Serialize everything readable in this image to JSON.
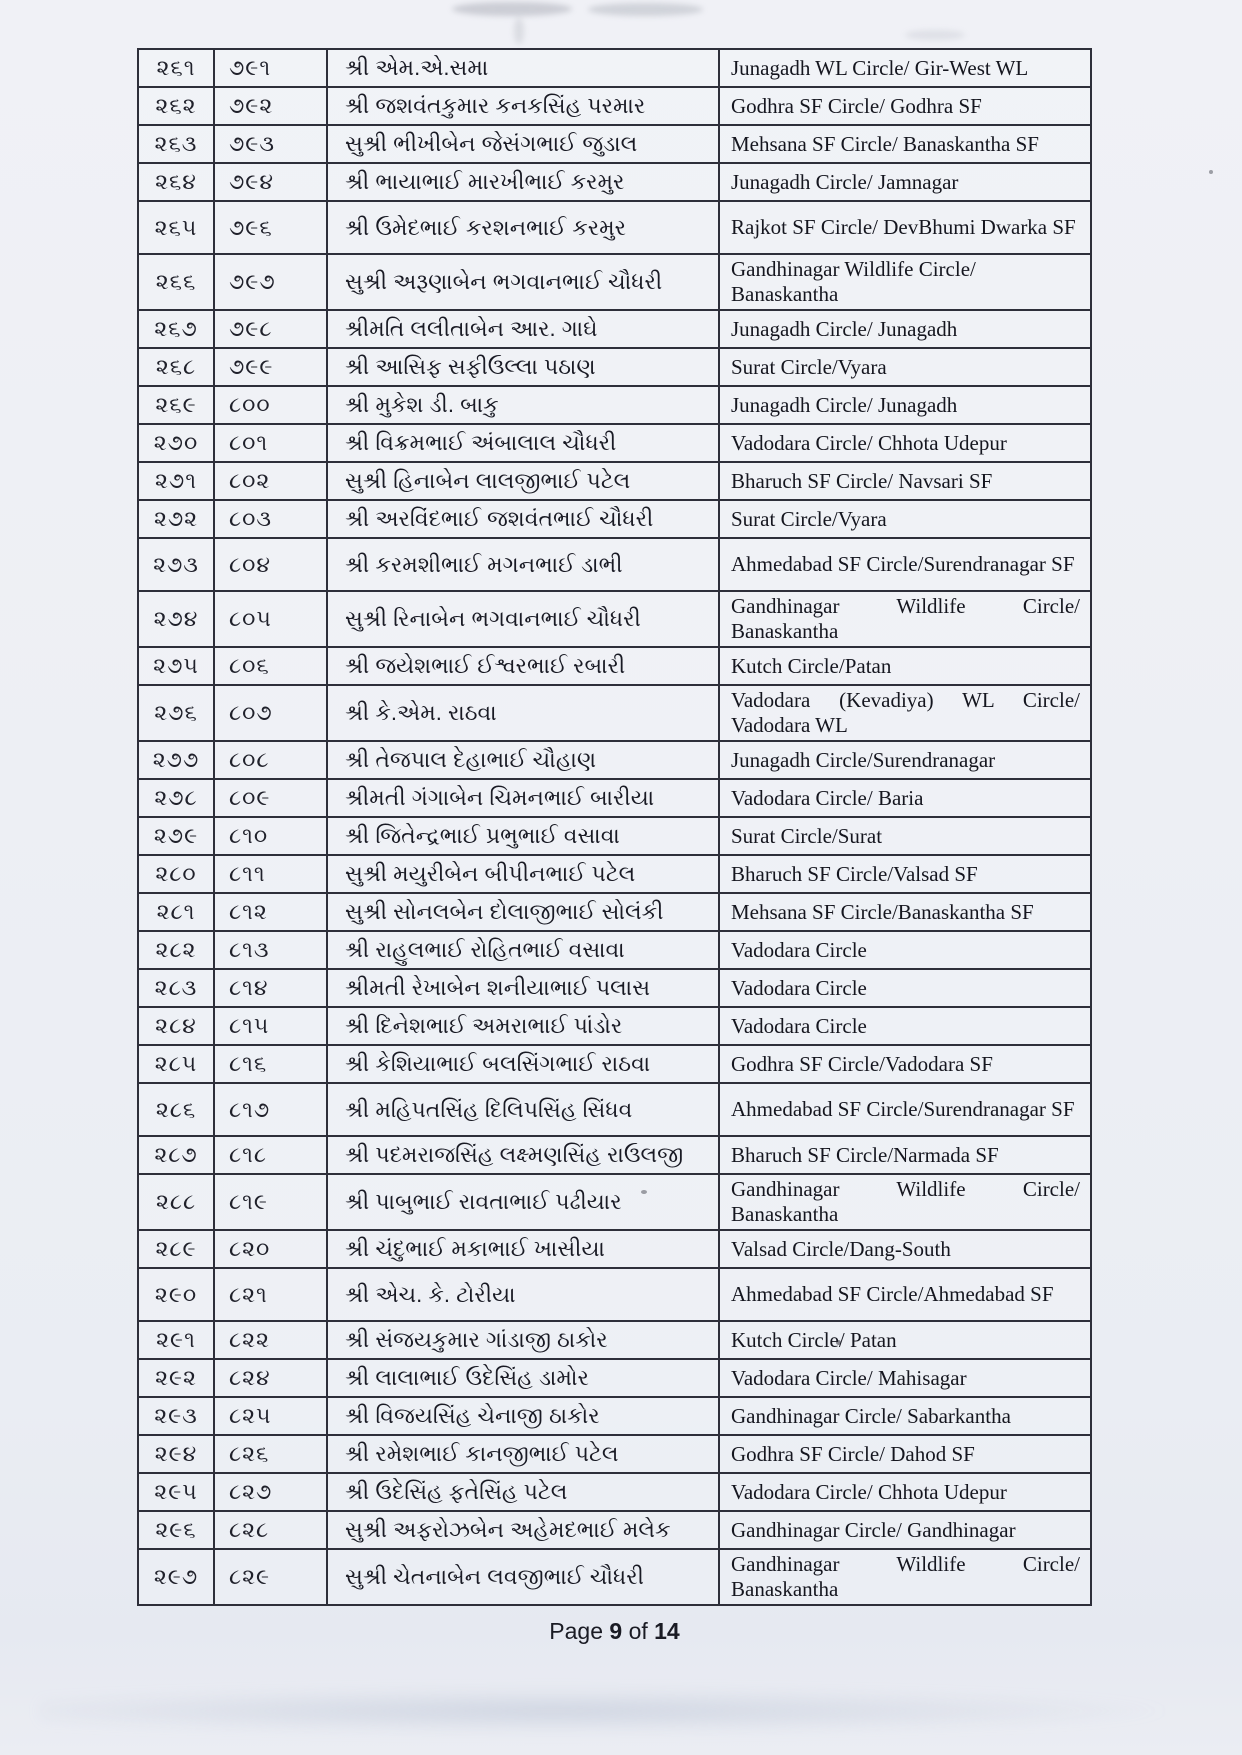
{
  "footer": {
    "word_page": "Page",
    "page_number": "9",
    "word_of": "of",
    "total_pages": "14"
  },
  "table": {
    "rows": [
      {
        "sr": "૨૬૧",
        "no": "૭૯૧",
        "name": "શ્રી એમ.એ.સમા",
        "circle": "Junagadh WL Circle/ Gir-West WL",
        "tall": false,
        "justify": false
      },
      {
        "sr": "૨૬૨",
        "no": "૭૯૨",
        "name": "શ્રી જશવંતકુમાર કનકસિંહ પરમાર",
        "circle": "Godhra SF Circle/ Godhra SF",
        "tall": false,
        "justify": false
      },
      {
        "sr": "૨૬૩",
        "no": "૭૯૩",
        "name": "સુશ્રી ભીખીબેન જેસંગભાઈ જુડાલ",
        "circle": "Mehsana SF Circle/ Banaskantha SF",
        "tall": false,
        "justify": false
      },
      {
        "sr": "૨૬૪",
        "no": "૭૯૪",
        "name": "શ્રી ભાયાભાઈ મારખીભાઈ કરમુર",
        "circle": "Junagadh Circle/ Jamnagar",
        "tall": false,
        "justify": false
      },
      {
        "sr": "૨૬૫",
        "no": "૭૯૬",
        "name": "શ્રી ઉમેદભાઈ કરશનભાઈ કરમુર",
        "circle": "Rajkot SF Circle/ DevBhumi Dwarka SF",
        "tall": true,
        "justify": false
      },
      {
        "sr": "૨૬૬",
        "no": "૭૯૭",
        "name": "સુશ્રી અરૂણાબેન ભગવાનભાઈ ચૌધરી",
        "circle": "Gandhinagar Wildlife Circle/ Banaskantha",
        "tall": true,
        "justify": false
      },
      {
        "sr": "૨૬૭",
        "no": "૭૯૮",
        "name": "શ્રીમતિ લલીતાબેન આર. ગાઘે",
        "circle": "Junagadh Circle/ Junagadh",
        "tall": false,
        "justify": false
      },
      {
        "sr": "૨૬૮",
        "no": "૭૯૯",
        "name": "શ્રી આસિફ સફીઉલ્લા પઠાણ",
        "circle": "Surat Circle/Vyara",
        "tall": false,
        "justify": false
      },
      {
        "sr": "૨૬૯",
        "no": "૮૦૦",
        "name": "શ્રી મુકેશ ડી. બાકુ",
        "circle": "Junagadh Circle/ Junagadh",
        "tall": false,
        "justify": false
      },
      {
        "sr": "૨૭૦",
        "no": "૮૦૧",
        "name": "શ્રી વિક્રમભાઈ અંબાલાલ ચૌધરી",
        "circle": "Vadodara Circle/ Chhota Udepur",
        "tall": false,
        "justify": false
      },
      {
        "sr": "૨૭૧",
        "no": "૮૦૨",
        "name": "સુશ્રી હિનાબેન લાલજીભાઈ પટેલ",
        "circle": "Bharuch SF Circle/ Navsari SF",
        "tall": false,
        "justify": false
      },
      {
        "sr": "૨૭૨",
        "no": "૮૦૩",
        "name": "શ્રી અરવિંદભાઈ જશવંતભાઈ ચૌધરી",
        "circle": "Surat Circle/Vyara",
        "tall": false,
        "justify": false
      },
      {
        "sr": "૨૭૩",
        "no": "૮૦૪",
        "name": "શ્રી કરમશીભાઈ મગનભાઈ ડાભી",
        "circle": "Ahmedabad SF Circle/Surendranagar SF",
        "tall": true,
        "justify": false
      },
      {
        "sr": "૨૭૪",
        "no": "૮૦૫",
        "name": "સુશ્રી રિનાબેન ભગવાનભાઈ ચૌધરી",
        "circle": "Gandhinagar Wildlife Circle/ Banaskantha",
        "tall": true,
        "justify": true
      },
      {
        "sr": "૨૭૫",
        "no": "૮૦૬",
        "name": "શ્રી જયેશભાઈ ઈશ્વરભાઈ રબારી",
        "circle": "Kutch Circle/Patan",
        "tall": false,
        "justify": false
      },
      {
        "sr": "૨૭૬",
        "no": "૮૦૭",
        "name": "શ્રી કે.એમ. રાઠવા",
        "circle": "Vadodara (Kevadiya) WL Circle/ Vadodara WL",
        "tall": true,
        "justify": true
      },
      {
        "sr": "૨૭૭",
        "no": "૮૦૮",
        "name": "શ્રી તેજપાલ દેહાભાઈ ચૌહાણ",
        "circle": "Junagadh Circle/Surendranagar",
        "tall": false,
        "justify": false
      },
      {
        "sr": "૨૭૮",
        "no": "૮૦૯",
        "name": "શ્રીમતી ગંગાબેન ચિમનભાઈ બારીયા",
        "circle": "Vadodara Circle/ Baria",
        "tall": false,
        "justify": false
      },
      {
        "sr": "૨૭૯",
        "no": "૮૧૦",
        "name": "શ્રી જિતેન્દ્રભાઈ પ્રભુભાઈ વસાવા",
        "circle": "Surat Circle/Surat",
        "tall": false,
        "justify": false
      },
      {
        "sr": "૨૮૦",
        "no": "૮૧૧",
        "name": "સુશ્રી મયુરીબેન બીપીનભાઈ પટેલ",
        "circle": "Bharuch SF Circle/Valsad SF",
        "tall": false,
        "justify": false
      },
      {
        "sr": "૨૮૧",
        "no": "૮૧૨",
        "name": "સુશ્રી સોનલબેન દોલાજીભાઈ સોલંકી",
        "circle": "Mehsana SF Circle/Banaskantha SF",
        "tall": false,
        "justify": false
      },
      {
        "sr": "૨૮૨",
        "no": "૮૧૩",
        "name": "શ્રી રાહુલભાઈ રોહિતભાઈ વસાવા",
        "circle": "Vadodara Circle",
        "tall": false,
        "justify": false
      },
      {
        "sr": "૨૮૩",
        "no": "૮૧૪",
        "name": "શ્રીમતી રેખાબેન શનીયાભાઈ પલાસ",
        "circle": "Vadodara Circle",
        "tall": false,
        "justify": false
      },
      {
        "sr": "૨૮૪",
        "no": "૮૧૫",
        "name": "શ્રી દિનેશભાઈ અમરાભાઈ પાંડોર",
        "circle": "Vadodara Circle",
        "tall": false,
        "justify": false
      },
      {
        "sr": "૨૮૫",
        "no": "૮૧૬",
        "name": "શ્રી કેશિયાભાઈ બલસિંગભાઈ રાઠવા",
        "circle": "Godhra SF Circle/Vadodara SF",
        "tall": false,
        "justify": false
      },
      {
        "sr": "૨૮૬",
        "no": "૮૧૭",
        "name": "શ્રી મહિપતસિંહ દિલિપસિંહ સિંધવ",
        "circle": "Ahmedabad SF Circle/Surendranagar SF",
        "tall": true,
        "justify": false
      },
      {
        "sr": "૨૮૭",
        "no": "૮૧૮",
        "name": "શ્રી પદમરાજસિંહ લક્ષ્મણસિંહ રાઉલજી",
        "circle": "Bharuch SF Circle/Narmada SF",
        "tall": false,
        "justify": false
      },
      {
        "sr": "૨૮૮",
        "no": "૮૧૯",
        "name": "શ્રી પાબુભાઈ રાવતાભાઈ પઢીયાર",
        "circle": "Gandhinagar Wildlife Circle/ Banaskantha",
        "tall": true,
        "justify": true
      },
      {
        "sr": "૨૮૯",
        "no": "૮૨૦",
        "name": "શ્રી ચંદુભાઈ મકાભાઈ ખાસીયા",
        "circle": "Valsad Circle/Dang-South",
        "tall": false,
        "justify": false
      },
      {
        "sr": "૨૯૦",
        "no": "૮૨૧",
        "name": "શ્રી એચ. કે. ટોરીયા",
        "circle": "Ahmedabad SF Circle/Ahmedabad SF",
        "tall": true,
        "justify": true
      },
      {
        "sr": "૨૯૧",
        "no": "૮૨૨",
        "name": "શ્રી સંજયકુમાર ગાંડાજી ઠાકોર",
        "circle": "Kutch Circle/ Patan",
        "tall": false,
        "justify": false
      },
      {
        "sr": "૨૯૨",
        "no": "૮૨૪",
        "name": "શ્રી લાલાભાઈ ઉદેસિંહ ડામોર",
        "circle": "Vadodara Circle/ Mahisagar",
        "tall": false,
        "justify": false
      },
      {
        "sr": "૨૯૩",
        "no": "૮૨૫",
        "name": "શ્રી વિજયસિંહ ચેનાજી ઠાકોર",
        "circle": "Gandhinagar Circle/ Sabarkantha",
        "tall": false,
        "justify": false
      },
      {
        "sr": "૨૯૪",
        "no": "૮૨૬",
        "name": "શ્રી રમેશભાઈ કાનજીભાઈ પટેલ",
        "circle": "Godhra SF Circle/ Dahod SF",
        "tall": false,
        "justify": false
      },
      {
        "sr": "૨૯૫",
        "no": "૮૨૭",
        "name": "શ્રી ઉદેસિંહ ફતેસિંહ પટેલ",
        "circle": "Vadodara Circle/ Chhota Udepur",
        "tall": false,
        "justify": false
      },
      {
        "sr": "૨૯૬",
        "no": "૮૨૮",
        "name": "સુશ્રી અફરોઝબેન અહેમદભાઈ મલેક",
        "circle": "Gandhinagar Circle/ Gandhinagar",
        "tall": false,
        "justify": false
      },
      {
        "sr": "૨૯૭",
        "no": "૮૨૯",
        "name": "સુશ્રી ચેતનાબેન લવજીભાઈ ચૌધરી",
        "circle": "Gandhinagar Wildlife Circle/ Banaskantha",
        "tall": true,
        "justify": true
      }
    ]
  }
}
